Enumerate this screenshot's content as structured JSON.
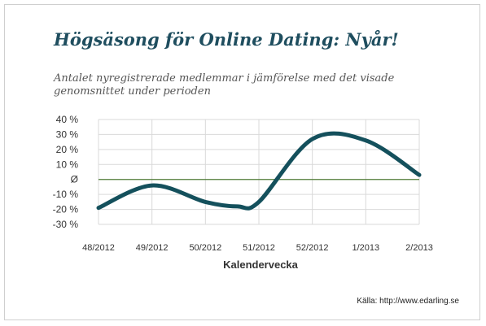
{
  "title": "Högsäsong för Online Dating: Nyår!",
  "subtitle": "Antalet nyregistrerade medlemmar i jämförelse med det visade genomsnittet under perioden",
  "source": "Källa: http://www.edarling.se",
  "colors": {
    "line": "#14505c",
    "baseline": "#4e7a34",
    "grid": "#d9d9d9",
    "title": "#1f4e5f"
  },
  "chart_data": {
    "type": "line",
    "title": "Högsäsong för Online Dating: Nyår!",
    "subtitle": "Antalet nyregistrerade medlemmar i jämförelse med det visade genomsnittet under perioden",
    "xlabel": "Kalendervecka",
    "ylabel": "",
    "ylim": [
      -30,
      40
    ],
    "grid": true,
    "y_ticks": [
      {
        "value": 40,
        "label": "40 %"
      },
      {
        "value": 30,
        "label": "30 %"
      },
      {
        "value": 20,
        "label": "20 %"
      },
      {
        "value": 10,
        "label": "10 %"
      },
      {
        "value": 0,
        "label": "Ø"
      },
      {
        "value": -10,
        "label": "-10 %"
      },
      {
        "value": -20,
        "label": "-20 %"
      },
      {
        "value": -30,
        "label": "-30 %"
      }
    ],
    "categories": [
      "48/2012",
      "49/2012",
      "50/2012",
      "51/2012",
      "52/2012",
      "1/2013",
      "2/2013"
    ],
    "points": [
      {
        "x": 0,
        "y": -19
      },
      {
        "x": 1,
        "y": -4
      },
      {
        "x": 2,
        "y": -15
      },
      {
        "x": 2.6,
        "y": -18
      },
      {
        "x": 3,
        "y": -15
      },
      {
        "x": 4,
        "y": 27
      },
      {
        "x": 5,
        "y": 26
      },
      {
        "x": 6,
        "y": 3
      }
    ]
  }
}
